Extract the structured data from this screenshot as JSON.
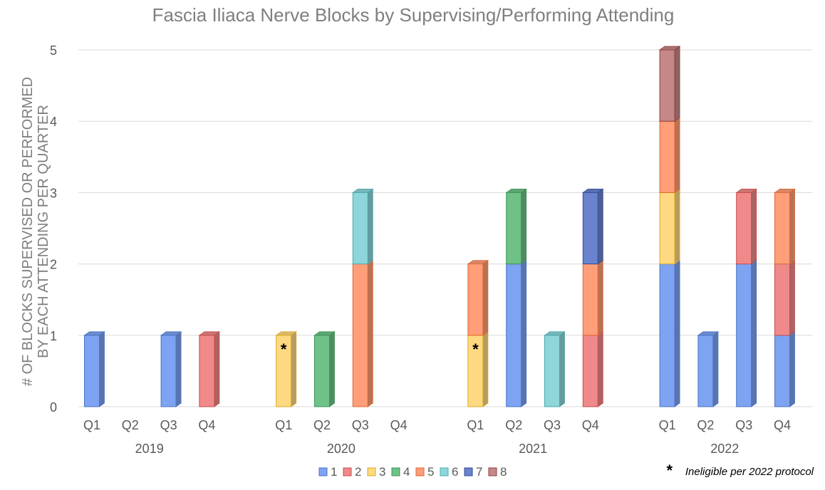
{
  "chart_data": {
    "type": "bar",
    "stacked": true,
    "title": "Fascia Iliaca Nerve Blocks by Supervising/Performing Attending",
    "ylabel_line1": "# OF BLOCKS SUPERVISED OR PERFORMED",
    "ylabel_line2": "BY EACH ATTENDING PER QUARTER",
    "ylim": [
      0,
      5
    ],
    "yticks": [
      0,
      1,
      2,
      3,
      4,
      5
    ],
    "grid": true,
    "legend_position": "bottom",
    "years": [
      "2019",
      "2020",
      "2021",
      "2022"
    ],
    "quarters": [
      "Q1",
      "Q2",
      "Q3",
      "Q4"
    ],
    "series": [
      {
        "name": "1",
        "color": "#7da3f2",
        "edge": "#4a72c4"
      },
      {
        "name": "2",
        "color": "#f08a8a",
        "edge": "#c84a4a"
      },
      {
        "name": "3",
        "color": "#ffd982",
        "edge": "#d9a920"
      },
      {
        "name": "4",
        "color": "#6fc287",
        "edge": "#3c9357"
      },
      {
        "name": "5",
        "color": "#ff9e78",
        "edge": "#e0662f"
      },
      {
        "name": "6",
        "color": "#8ed6da",
        "edge": "#4aa8ae"
      },
      {
        "name": "7",
        "color": "#6a83cf",
        "edge": "#334c99"
      },
      {
        "name": "8",
        "color": "#c48888",
        "edge": "#923c3c"
      }
    ],
    "values": [
      [
        1,
        0,
        0,
        0,
        0,
        0,
        0,
        0
      ],
      [
        0,
        0,
        0,
        0,
        0,
        0,
        0,
        0
      ],
      [
        1,
        0,
        0,
        0,
        0,
        0,
        0,
        0
      ],
      [
        0,
        1,
        0,
        0,
        0,
        0,
        0,
        0
      ],
      [
        0,
        0,
        1,
        0,
        0,
        0,
        0,
        0
      ],
      [
        0,
        0,
        0,
        1,
        0,
        0,
        0,
        0
      ],
      [
        0,
        0,
        0,
        0,
        2,
        1,
        0,
        0
      ],
      [
        0,
        0,
        0,
        0,
        0,
        0,
        0,
        0
      ],
      [
        0,
        0,
        1,
        0,
        1,
        0,
        0,
        0
      ],
      [
        2,
        0,
        0,
        1,
        0,
        0,
        0,
        0
      ],
      [
        0,
        0,
        0,
        0,
        0,
        1,
        0,
        0
      ],
      [
        0,
        1,
        0,
        0,
        1,
        0,
        1,
        0
      ],
      [
        2,
        0,
        1,
        0,
        1,
        0,
        0,
        1
      ],
      [
        1,
        0,
        0,
        0,
        0,
        0,
        0,
        0
      ],
      [
        2,
        1,
        0,
        0,
        0,
        0,
        0,
        0
      ],
      [
        1,
        1,
        0,
        0,
        1,
        0,
        0,
        0
      ]
    ],
    "asterisk_marks": [
      {
        "year": "2020",
        "quarter": "Q1",
        "text": "*"
      },
      {
        "year": "2021",
        "quarter": "Q1",
        "text": "*"
      }
    ],
    "footnote_symbol": "*",
    "footnote_text": "Ineligible per 2022 protocol"
  }
}
